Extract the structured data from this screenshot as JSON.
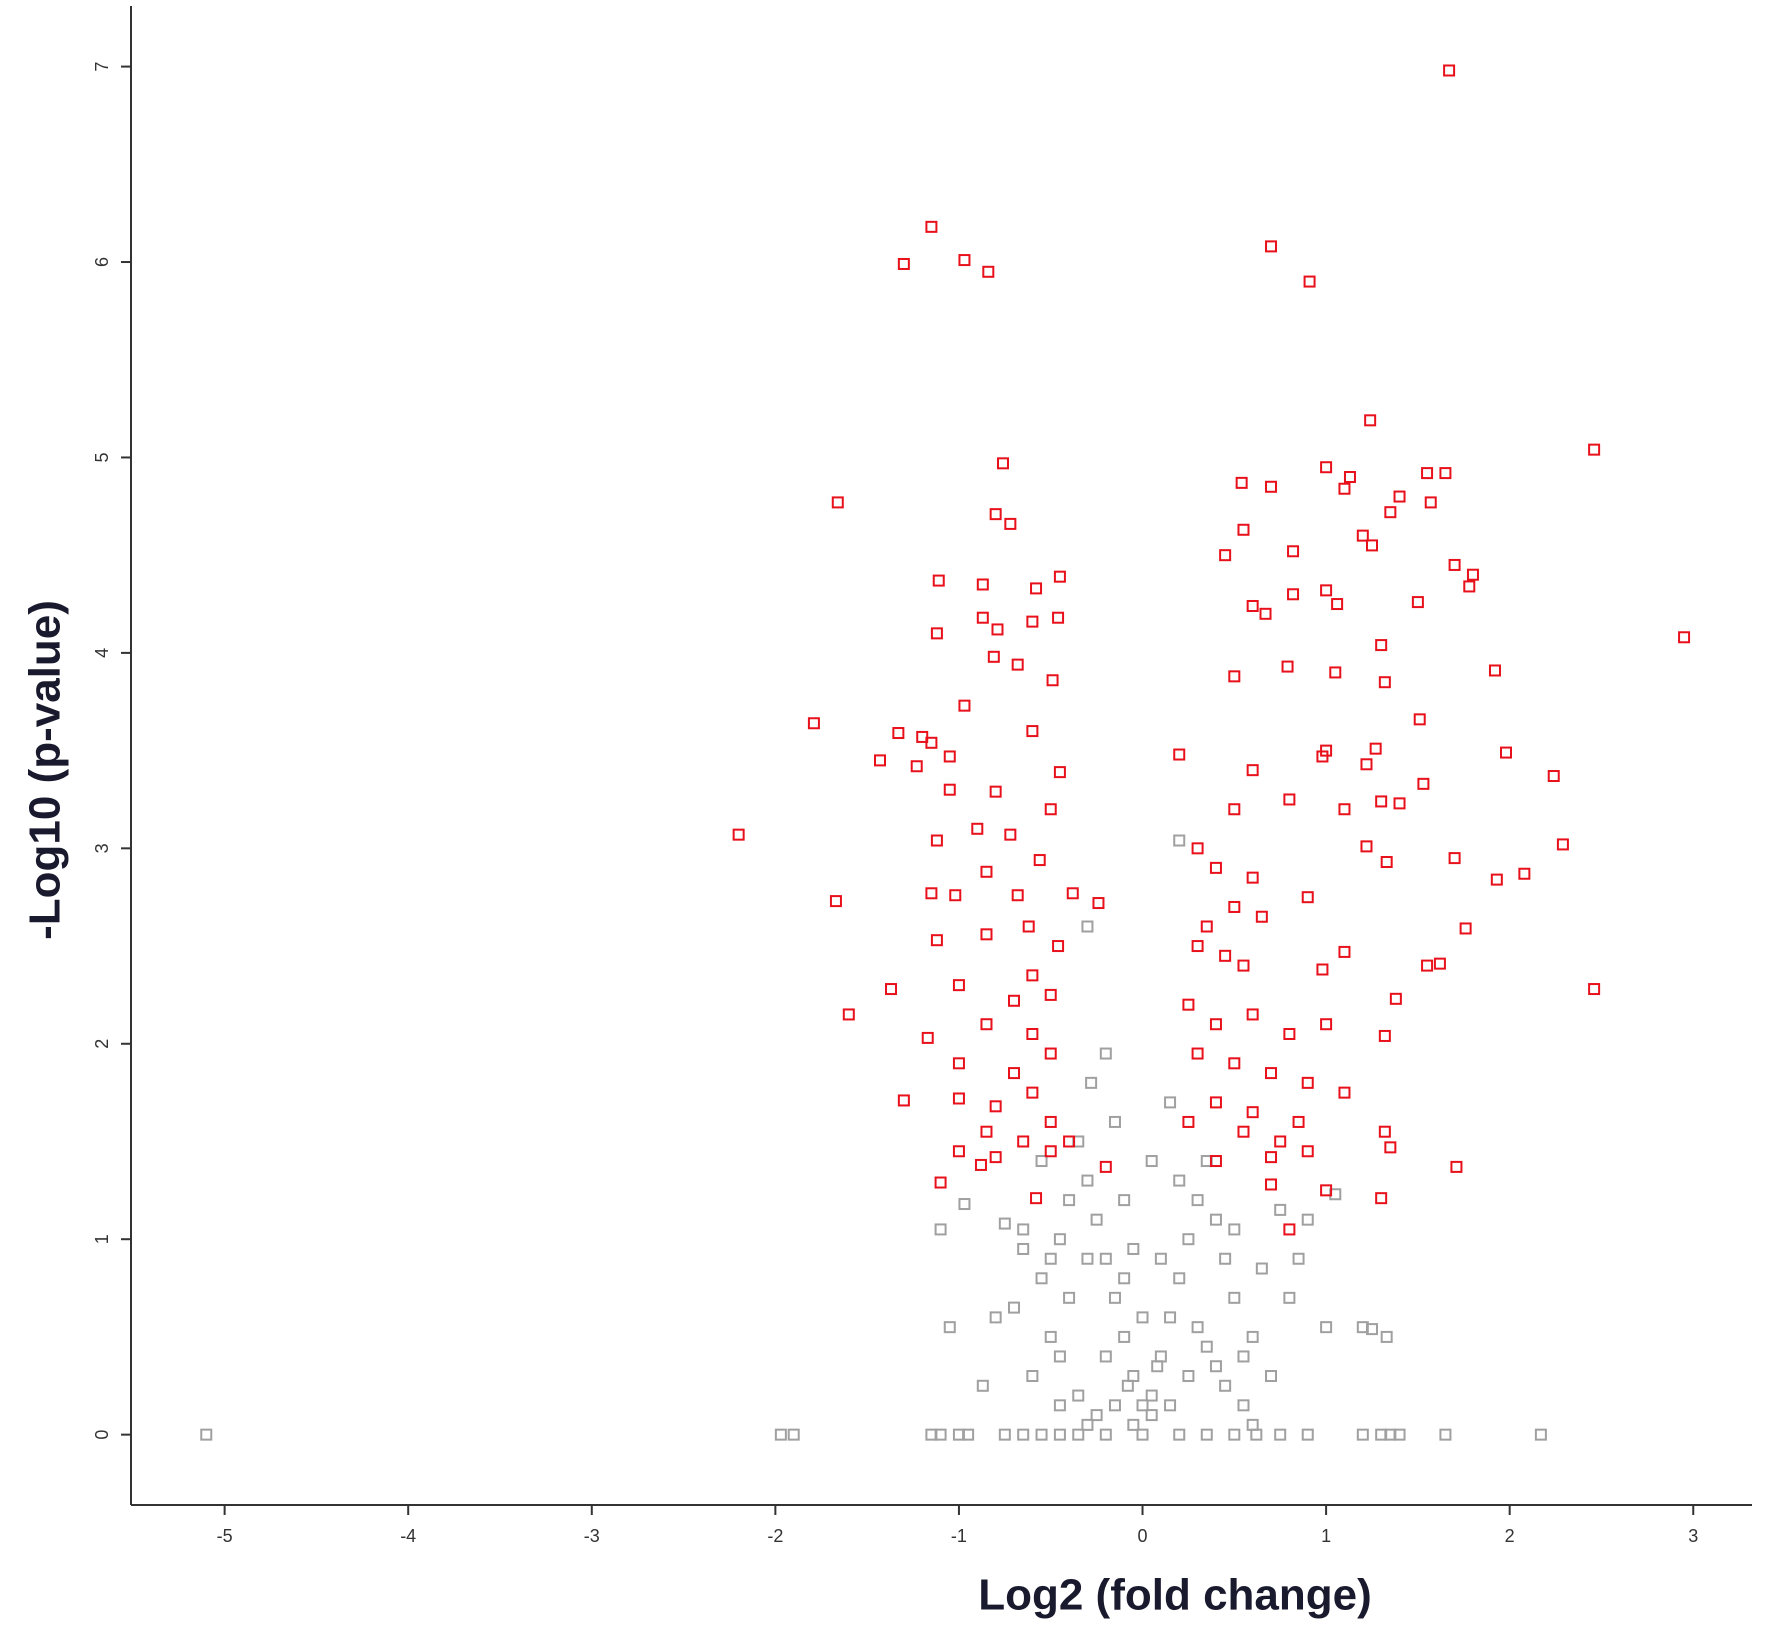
{
  "chart_data": {
    "type": "scatter",
    "x_label": "Log2 (fold change)",
    "y_label": "-Log10 (p-value)",
    "xlim": [
      -5.51,
      3.32
    ],
    "ylim": [
      -0.36,
      7.31
    ],
    "xticks": [
      -5,
      -4,
      -3,
      -2,
      -1,
      0,
      1,
      2,
      3
    ],
    "yticks": [
      0,
      1,
      2,
      3,
      4,
      5,
      6,
      7
    ],
    "grid": false,
    "series": [
      {
        "color": "#e8101a",
        "x": [
          1.67,
          -1.15,
          -1.3,
          -0.97,
          -0.84,
          0.7,
          0.91,
          1.24,
          2.46,
          -0.76,
          -1.66,
          -0.8,
          -0.72,
          1.0,
          1.55,
          1.65,
          0.54,
          0.7,
          1.13,
          1.1,
          1.57,
          1.4,
          1.35,
          0.55,
          0.45,
          0.82,
          1.2,
          1.25,
          1.7,
          1.8,
          1.78,
          -1.11,
          -0.87,
          -0.45,
          -0.58,
          -0.87,
          -0.6,
          -0.46,
          -1.12,
          -0.79,
          -0.81,
          -0.68,
          0.67,
          0.6,
          0.82,
          1.0,
          1.06,
          1.3,
          1.5,
          2.95,
          1.92,
          1.05,
          1.32,
          0.79,
          0.5,
          -0.49,
          -1.79,
          -1.33,
          -1.2,
          -1.15,
          -0.97,
          -0.6,
          -1.43,
          -1.05,
          1.51,
          1.98,
          2.24,
          1.53,
          1.27,
          1.0,
          1.22,
          0.98,
          0.6,
          0.2,
          -1.23,
          -1.05,
          -0.8,
          -0.45,
          -0.5,
          -0.9,
          -1.12,
          -2.2,
          -0.72,
          0.5,
          0.8,
          1.1,
          1.3,
          1.4,
          2.29,
          1.7,
          1.33,
          1.22,
          0.3,
          0.4,
          0.6,
          -0.56,
          -0.85,
          -1.15,
          -1.67,
          -1.02,
          -0.68,
          -0.38,
          -0.24,
          2.08,
          1.93,
          1.76,
          0.9,
          0.5,
          0.65,
          0.35,
          -0.62,
          -0.46,
          -0.85,
          -1.12,
          1.62,
          1.55,
          2.46,
          1.38,
          1.1,
          0.98,
          0.3,
          0.45,
          0.55,
          -0.6,
          -0.7,
          -1.37,
          -1.6,
          -1.0,
          -0.5,
          0.25,
          0.4,
          0.6,
          0.8,
          1.0,
          1.32,
          -0.85,
          -0.6,
          -1.17,
          -0.5,
          -1.0,
          -0.7,
          0.3,
          0.5,
          0.7,
          0.9,
          1.1,
          -1.3,
          -1.0,
          -0.6,
          -0.8,
          0.4,
          0.6,
          0.85,
          -0.5,
          -0.85,
          0.25,
          0.55,
          0.75,
          1.32,
          1.35,
          -0.65,
          -0.4,
          -1.0,
          -0.8,
          -0.5,
          0.4,
          0.7,
          0.9,
          1.71,
          -0.88,
          -0.2,
          -1.1,
          -0.58,
          0.7,
          1.3,
          1.0,
          0.8
        ],
        "values": [
          6.98,
          6.18,
          5.99,
          6.01,
          5.95,
          6.08,
          5.9,
          5.19,
          5.04,
          4.97,
          4.77,
          4.71,
          4.66,
          4.95,
          4.92,
          4.92,
          4.87,
          4.85,
          4.9,
          4.84,
          4.77,
          4.8,
          4.72,
          4.63,
          4.5,
          4.52,
          4.6,
          4.55,
          4.45,
          4.4,
          4.34,
          4.37,
          4.35,
          4.39,
          4.33,
          4.18,
          4.16,
          4.18,
          4.1,
          4.12,
          3.98,
          3.94,
          4.2,
          4.24,
          4.3,
          4.32,
          4.25,
          4.04,
          4.26,
          4.08,
          3.91,
          3.9,
          3.85,
          3.93,
          3.88,
          3.86,
          3.64,
          3.59,
          3.57,
          3.54,
          3.73,
          3.6,
          3.45,
          3.47,
          3.66,
          3.49,
          3.37,
          3.33,
          3.51,
          3.5,
          3.43,
          3.47,
          3.4,
          3.48,
          3.42,
          3.3,
          3.29,
          3.39,
          3.2,
          3.1,
          3.04,
          3.07,
          3.07,
          3.2,
          3.25,
          3.2,
          3.24,
          3.23,
          3.02,
          2.95,
          2.93,
          3.01,
          3.0,
          2.9,
          2.85,
          2.94,
          2.88,
          2.77,
          2.73,
          2.76,
          2.76,
          2.77,
          2.72,
          2.87,
          2.84,
          2.59,
          2.75,
          2.7,
          2.65,
          2.6,
          2.6,
          2.5,
          2.56,
          2.53,
          2.41,
          2.4,
          2.28,
          2.23,
          2.47,
          2.38,
          2.5,
          2.45,
          2.4,
          2.35,
          2.22,
          2.28,
          2.15,
          2.3,
          2.25,
          2.2,
          2.1,
          2.15,
          2.05,
          2.1,
          2.04,
          2.1,
          2.05,
          2.03,
          1.95,
          1.9,
          1.85,
          1.95,
          1.9,
          1.85,
          1.8,
          1.75,
          1.71,
          1.72,
          1.75,
          1.68,
          1.7,
          1.65,
          1.6,
          1.6,
          1.55,
          1.6,
          1.55,
          1.5,
          1.55,
          1.47,
          1.5,
          1.5,
          1.45,
          1.42,
          1.45,
          1.4,
          1.42,
          1.45,
          1.37,
          1.38,
          1.37,
          1.29,
          1.21,
          1.28,
          1.21,
          1.25,
          1.05
        ]
      },
      {
        "color": "#a0a0a0",
        "x": [
          -5.1,
          -1.97,
          -1.9,
          -1.15,
          -1.1,
          -1.0,
          -0.95,
          -0.75,
          -0.65,
          -0.55,
          -0.45,
          -0.35,
          -0.2,
          0.0,
          0.2,
          0.35,
          0.5,
          0.62,
          0.75,
          0.9,
          1.2,
          1.3,
          1.35,
          1.4,
          1.65,
          2.17,
          -1.1,
          -0.97,
          -0.75,
          -0.65,
          -1.05,
          -0.87,
          -0.8,
          -0.7,
          -0.55,
          -0.5,
          -0.45,
          -0.4,
          -0.35,
          -0.3,
          -0.25,
          -0.2,
          -0.15,
          -0.1,
          -0.05,
          0.05,
          0.1,
          0.15,
          0.2,
          0.25,
          0.3,
          0.35,
          0.4,
          0.45,
          0.5,
          0.6,
          0.7,
          0.8,
          0.9,
          1.0,
          1.05,
          1.2,
          1.25,
          1.33,
          -0.3,
          -0.2,
          -0.28,
          -0.45,
          -0.35,
          -0.25,
          -0.15,
          -0.05,
          0.05,
          0.15,
          0.25,
          0.35,
          0.45,
          0.55,
          0.65,
          -0.6,
          -0.5,
          -0.4,
          -0.3,
          -0.2,
          -0.1,
          0.0,
          0.1,
          0.2,
          0.3,
          0.4,
          0.5,
          0.2,
          -0.15,
          0.15,
          -0.1,
          0.05,
          -0.05,
          0.0,
          0.08,
          -0.08,
          -0.55,
          0.75,
          0.85,
          -0.65,
          0.55,
          -0.45,
          0.6,
          -0.3
        ],
        "values": [
          0,
          0,
          0,
          0,
          0,
          0,
          0,
          0,
          0,
          0,
          0,
          0,
          0,
          0,
          0,
          0,
          0,
          0,
          0,
          0,
          0,
          0,
          0,
          0,
          0,
          0,
          1.05,
          1.18,
          1.08,
          1.05,
          0.55,
          0.25,
          0.6,
          0.65,
          0.8,
          0.9,
          1.0,
          1.2,
          1.5,
          1.3,
          1.1,
          0.9,
          0.7,
          0.5,
          0.3,
          0.2,
          0.4,
          0.6,
          0.8,
          1.0,
          1.2,
          1.4,
          1.1,
          0.9,
          0.7,
          0.5,
          0.3,
          0.7,
          1.1,
          0.55,
          1.23,
          0.55,
          0.54,
          0.5,
          2.6,
          1.95,
          1.8,
          0.4,
          0.2,
          0.1,
          0.15,
          0.05,
          0.1,
          0.15,
          0.3,
          0.45,
          0.25,
          0.4,
          0.85,
          0.3,
          0.5,
          0.7,
          0.9,
          0.4,
          0.8,
          0.6,
          0.9,
          1.3,
          0.55,
          0.35,
          1.05,
          3.04,
          1.6,
          1.7,
          1.2,
          1.4,
          0.95,
          0.15,
          0.35,
          0.25,
          1.4,
          1.15,
          0.9,
          0.95,
          0.15,
          0.15,
          0.05,
          0.05
        ]
      }
    ]
  }
}
